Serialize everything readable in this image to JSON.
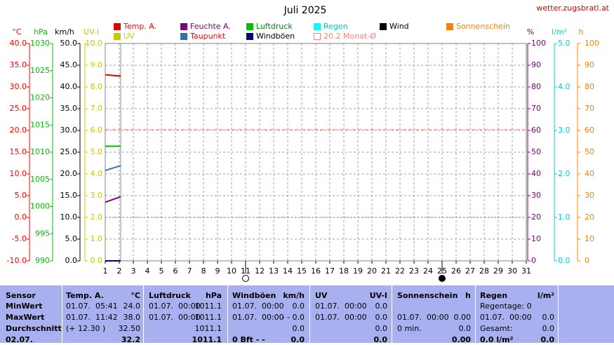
{
  "chart_data": {
    "type": "line",
    "title": "Juli 2025",
    "source": "wetter.zugsbratl.at",
    "grid": true,
    "x": [
      1,
      2.1
    ],
    "xlim": [
      1,
      31
    ],
    "xticks": [
      1,
      2,
      3,
      4,
      5,
      6,
      7,
      8,
      9,
      10,
      11,
      12,
      13,
      14,
      15,
      16,
      17,
      18,
      19,
      20,
      21,
      22,
      23,
      24,
      25,
      26,
      27,
      28,
      29,
      30,
      31
    ],
    "axes": [
      {
        "unit": "°C",
        "color": "#ff0000",
        "lim": [
          -10,
          40
        ],
        "ticks": [
          {
            "value": -10,
            "label": "-10.0"
          },
          {
            "value": -5,
            "label": "-5.0"
          },
          {
            "value": 0,
            "label": "0.0"
          },
          {
            "value": 5,
            "label": "5.0"
          },
          {
            "value": 10,
            "label": "10.0"
          },
          {
            "value": 15,
            "label": "15.0"
          },
          {
            "value": 20,
            "label": "20.0"
          },
          {
            "value": 25,
            "label": "25.0"
          },
          {
            "value": 30,
            "label": "30.0"
          },
          {
            "value": 35,
            "label": "35.0"
          },
          {
            "value": 40,
            "label": "40.0"
          }
        ]
      },
      {
        "unit": "hPa",
        "color": "#00c000",
        "lim": [
          990,
          1030
        ],
        "ticks": [
          990,
          995,
          1000,
          1005,
          1010,
          1015,
          1020,
          1025,
          1030
        ]
      },
      {
        "unit": "km/h",
        "color": "#000000",
        "lim": [
          0,
          50
        ],
        "ticks": [
          {
            "value": 0,
            "label": "0.0"
          },
          {
            "value": 5,
            "label": "5.0"
          },
          {
            "value": 10,
            "label": "10.0"
          },
          {
            "value": 15,
            "label": "15.0"
          },
          {
            "value": 20,
            "label": "20.0"
          },
          {
            "value": 25,
            "label": "25.0"
          },
          {
            "value": 30,
            "label": "30.0"
          },
          {
            "value": 35,
            "label": "35.0"
          },
          {
            "value": 40,
            "label": "40.0"
          },
          {
            "value": 45,
            "label": "45.0"
          },
          {
            "value": 50,
            "label": "50.0"
          }
        ]
      },
      {
        "unit": "UV-I",
        "color": "#c8c800",
        "lim": [
          0,
          10
        ],
        "ticks": [
          {
            "value": 0,
            "label": "0.0"
          },
          {
            "value": 1,
            "label": "1.0"
          },
          {
            "value": 2,
            "label": "2.0"
          },
          {
            "value": 3,
            "label": "3.0"
          },
          {
            "value": 4,
            "label": "4.0"
          },
          {
            "value": 5,
            "label": "5.0"
          },
          {
            "value": 6,
            "label": "6.0"
          },
          {
            "value": 7,
            "label": "7.0"
          },
          {
            "value": 8,
            "label": "8.0"
          },
          {
            "value": 9,
            "label": "9.0"
          },
          {
            "value": 10,
            "label": "10.0"
          }
        ]
      },
      {
        "unit": "%",
        "color": "#800080",
        "lim": [
          0,
          100
        ],
        "ticks": [
          0,
          10,
          20,
          30,
          40,
          50,
          60,
          70,
          80,
          90,
          100
        ]
      },
      {
        "unit": "l/m²",
        "color": "#00d0d0",
        "lim": [
          0,
          5
        ],
        "ticks": [
          {
            "value": 0,
            "label": "0.0"
          },
          {
            "value": 1,
            "label": "1.0"
          },
          {
            "value": 2,
            "label": "2.0"
          },
          {
            "value": 3,
            "label": "3.0"
          },
          {
            "value": 4,
            "label": "4.0"
          },
          {
            "value": 5,
            "label": "5.0"
          }
        ]
      },
      {
        "unit": "h",
        "color": "#ff8000",
        "lim": [
          0,
          100
        ],
        "ticks": [
          0,
          10,
          20,
          30,
          40,
          50,
          60,
          70,
          80,
          90,
          100
        ]
      }
    ],
    "series": [
      {
        "name": "Temp. A.",
        "color": "#e00000",
        "label_color": "#ff0000",
        "axis": "°C",
        "values": [
          32.8,
          32.5
        ]
      },
      {
        "name": "Feuchte A.",
        "color": "#800080",
        "label_color": "#800080",
        "axis": "%",
        "values": [
          27,
          29.5
        ]
      },
      {
        "name": "Luftdruck",
        "color": "#00c000",
        "label_color": "#008000",
        "axis": "hPa",
        "values": [
          1011.1,
          1011.1
        ]
      },
      {
        "name": "Regen",
        "color": "#00ffff",
        "label_color": "#00c8c8",
        "axis": "l/m²",
        "values": [
          0,
          0
        ]
      },
      {
        "name": "Wind",
        "color": "#000000",
        "label_color": "#000000",
        "axis": "km/h",
        "values": [
          0,
          0
        ]
      },
      {
        "name": "Sonnenschein",
        "color": "#ff8000",
        "label_color": "#ff8000",
        "axis": "h",
        "values": [
          0,
          0
        ]
      },
      {
        "name": "UV",
        "color": "#c8c800",
        "label_color": "#c8c800",
        "axis": "UV-I",
        "values": [
          0,
          0
        ]
      },
      {
        "name": "Taupunkt",
        "color": "#3a70a8",
        "label_color": "#ff0000",
        "axis": "°C",
        "values": [
          10.8,
          11.9
        ]
      },
      {
        "name": "Windböen",
        "color": "#000080",
        "label_color": "#000000",
        "axis": "km/h",
        "values": [
          0,
          0
        ]
      }
    ],
    "reference_lines": [
      {
        "name": "Monat-Ø",
        "value": 20.2,
        "axis": "°C",
        "color": "#ff8080"
      },
      {
        "value": 1,
        "axis": "l/m²",
        "color": "#4080ff"
      }
    ]
  },
  "table": {
    "header": [
      "Sensor",
      "Temp. A.",
      "°C",
      "Luftdruck",
      "hPa",
      "Windböen",
      "km/h",
      "UV",
      "UV-I",
      "Sonnenschein",
      "h",
      "Regen",
      "l/m²"
    ],
    "rows": [
      [
        "MinWert",
        "01.07.  05:41",
        "24.0",
        "01.07.  00:00",
        "1011.1",
        "01.07.  00:00",
        "0.0",
        "01.07.  00:00",
        "0.0",
        null,
        null,
        "Regentage: 0",
        null
      ],
      [
        "MaxWert",
        "01.07.  11:42",
        "38.0",
        "01.07.  00:00",
        "1011.1",
        "01.07.  00:00",
        "- - 0.0",
        "01.07.  00:00",
        "0.0",
        "01.07.  00:00",
        "0.00",
        "01.07.  00:00",
        "0.0"
      ],
      [
        "Durchschnitt",
        "(+ 12.30 )",
        "32.50",
        null,
        "1011.1",
        null,
        "0.0",
        null,
        "0.0",
        "0 min.",
        "0.0",
        "Gesamt:",
        "0.0"
      ],
      [
        "02.07.",
        null,
        "32.2",
        null,
        "1011.1",
        "0 Bft - -",
        "0.0",
        null,
        "0.0",
        null,
        "0.00",
        "0.0 l/m²",
        "0.0"
      ]
    ]
  }
}
